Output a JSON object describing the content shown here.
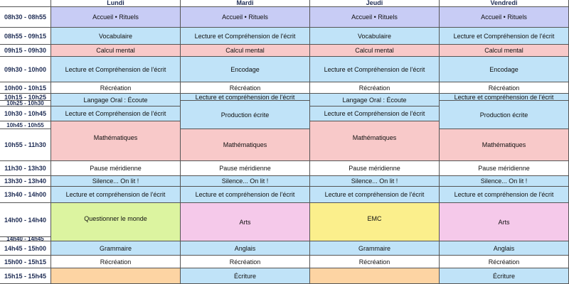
{
  "colors": {
    "purple": "#c8ccf5",
    "blue": "#c0e3f8",
    "pink": "#f8c9c9",
    "white": "#ffffff",
    "magenta": "#f5c9ea",
    "green": "#dcf4a0",
    "yellow": "#fbef8c",
    "orange": "#fdd4a3",
    "header_text": "#1f2d55"
  },
  "days": [
    "Lundi",
    "Mardi",
    "Jeudi",
    "Vendredi"
  ],
  "times": [
    "08h30 - 08h55",
    "08h55 - 09h15",
    "09h15 - 09h30",
    "09h30 - 10h00",
    "10h00 - 10h15",
    "10h15 - 10h25",
    "10h25 - 10h30",
    "10h30 - 10h45",
    "10h45 - 10h55",
    "10h55 - 11h30",
    "11h30 - 13h30",
    "13h30 - 13h40",
    "13h40 - 14h00",
    "14h00 - 14h40",
    "14h40 - 14h45",
    "14h45 - 15h00",
    "15h00 - 15h15",
    "15h15 - 15h45"
  ],
  "activities": {
    "lundi": [
      {
        "label": "Accueil • Rituels",
        "color": "purple"
      },
      {
        "label": "Vocabulaire",
        "color": "blue"
      },
      {
        "label": "Calcul mental",
        "color": "pink"
      },
      {
        "label": "Lecture et Compréhension de l'écrit",
        "color": "blue"
      },
      {
        "label": "Récréation",
        "color": "white"
      },
      {
        "label": "Langage Oral : Écoute",
        "color": "blue"
      },
      {
        "label": "Lecture et Compréhension de l'écrit",
        "color": "blue"
      },
      {
        "label": "Mathématiques",
        "color": "pink"
      },
      {
        "label": "Pause méridienne",
        "color": "white"
      },
      {
        "label": "Silence... On lit !",
        "color": "blue"
      },
      {
        "label": "Lecture et compréhension de l'écrit",
        "color": "blue"
      },
      {
        "label": "Questionner le monde",
        "color": "green"
      },
      {
        "label": "Grammaire",
        "color": "blue"
      },
      {
        "label": "Récréation",
        "color": "white"
      },
      {
        "label": "",
        "color": "orange"
      }
    ],
    "mardi": [
      {
        "label": "Accueil • Rituels",
        "color": "purple"
      },
      {
        "label": "Lecture et Compréhension de l'écrit",
        "color": "blue"
      },
      {
        "label": "Calcul mental",
        "color": "pink"
      },
      {
        "label": "Encodage",
        "color": "blue"
      },
      {
        "label": "Récréation",
        "color": "white"
      },
      {
        "label": "Lecture et compréhension de l'écrit",
        "color": "blue"
      },
      {
        "label": "Production écrite",
        "color": "blue"
      },
      {
        "label": "Mathématiques",
        "color": "pink"
      },
      {
        "label": "Pause méridienne",
        "color": "white"
      },
      {
        "label": "Silence... On lit !",
        "color": "blue"
      },
      {
        "label": "Lecture et compréhension de l'écrit",
        "color": "blue"
      },
      {
        "label": "Arts",
        "color": "magenta"
      },
      {
        "label": "Anglais",
        "color": "blue"
      },
      {
        "label": "Récréation",
        "color": "white"
      },
      {
        "label": "Écriture",
        "color": "blue"
      }
    ],
    "jeudi": [
      {
        "label": "Accueil • Rituels",
        "color": "purple"
      },
      {
        "label": "Vocabulaire",
        "color": "blue"
      },
      {
        "label": "Calcul mental",
        "color": "pink"
      },
      {
        "label": "Lecture et Compréhension de l'écrit",
        "color": "blue"
      },
      {
        "label": "Récréation",
        "color": "white"
      },
      {
        "label": "Langage Oral : Écoute",
        "color": "blue"
      },
      {
        "label": "Lecture et Compréhension de l'écrit",
        "color": "blue"
      },
      {
        "label": "Mathématiques",
        "color": "pink"
      },
      {
        "label": "Pause méridienne",
        "color": "white"
      },
      {
        "label": "Silence... On lit !",
        "color": "blue"
      },
      {
        "label": "Lecture et compréhension de l'écrit",
        "color": "blue"
      },
      {
        "label": "EMC",
        "color": "yellow"
      },
      {
        "label": "Grammaire",
        "color": "blue"
      },
      {
        "label": "Récréation",
        "color": "white"
      },
      {
        "label": "",
        "color": "orange"
      }
    ],
    "vendredi": [
      {
        "label": "Accueil • Rituels",
        "color": "purple"
      },
      {
        "label": "Lecture et Compréhension de l'écrit",
        "color": "blue"
      },
      {
        "label": "Calcul mental",
        "color": "pink"
      },
      {
        "label": "Encodage",
        "color": "blue"
      },
      {
        "label": "Récréation",
        "color": "white"
      },
      {
        "label": "Lecture et compréhension de l'écrit",
        "color": "blue"
      },
      {
        "label": "Production écrite",
        "color": "blue"
      },
      {
        "label": "Mathématiques",
        "color": "pink"
      },
      {
        "label": "Pause méridienne",
        "color": "white"
      },
      {
        "label": "Silence... On lit !",
        "color": "blue"
      },
      {
        "label": "Lecture et compréhension de l'écrit",
        "color": "blue"
      },
      {
        "label": "Arts",
        "color": "magenta"
      },
      {
        "label": "Anglais",
        "color": "blue"
      },
      {
        "label": "Récréation",
        "color": "white"
      },
      {
        "label": "Écriture",
        "color": "blue"
      }
    ]
  }
}
